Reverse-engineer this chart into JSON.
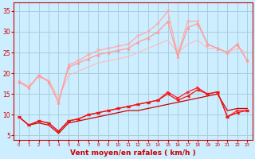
{
  "xlabel": "Vent moyen/en rafales ( km/h )",
  "background_color": "#cceeff",
  "grid_color": "#aaccdd",
  "xlim": [
    -0.5,
    23.5
  ],
  "ylim": [
    4,
    37
  ],
  "yticks": [
    5,
    10,
    15,
    20,
    25,
    30,
    35
  ],
  "xticks": [
    0,
    1,
    2,
    3,
    4,
    5,
    6,
    7,
    8,
    9,
    10,
    11,
    12,
    13,
    14,
    15,
    16,
    17,
    18,
    19,
    20,
    21,
    22,
    23
  ],
  "series": [
    {
      "name": "smooth_upper_light",
      "color": "#ffbbbb",
      "linewidth": 0.8,
      "marker": null,
      "markersize": 0,
      "y": [
        18,
        17,
        19,
        18.5,
        14,
        19.5,
        20.5,
        21.5,
        22.5,
        23,
        23.5,
        24,
        25,
        26,
        27,
        28,
        25,
        27,
        28,
        26,
        26,
        25,
        26,
        25
      ]
    },
    {
      "name": "jagged_upper_light",
      "color": "#ffaaaa",
      "linewidth": 0.9,
      "marker": "v",
      "markersize": 2.5,
      "y": [
        18,
        16.5,
        19.5,
        18,
        13,
        22,
        23,
        24.5,
        25.5,
        26,
        26.5,
        27,
        29,
        30,
        32,
        35,
        24.5,
        32.5,
        32.5,
        27,
        26,
        25,
        27,
        23
      ]
    },
    {
      "name": "jagged_upper_light2",
      "color": "#ff9999",
      "linewidth": 0.9,
      "marker": "^",
      "markersize": 2.5,
      "y": [
        18,
        16.5,
        19.5,
        18,
        13,
        21.5,
        22.5,
        23.5,
        24.5,
        25,
        25.5,
        26,
        27.5,
        28.5,
        30,
        32.5,
        24,
        31,
        32,
        27,
        26,
        25,
        27,
        23
      ]
    },
    {
      "name": "smooth_lower_dark",
      "color": "#cc0000",
      "linewidth": 0.9,
      "marker": null,
      "markersize": 0,
      "y": [
        9.5,
        7.5,
        8.0,
        7.5,
        5.5,
        8.0,
        8.5,
        9.0,
        9.5,
        10.0,
        10.5,
        11.0,
        11.0,
        11.5,
        12.0,
        12.5,
        13.0,
        13.5,
        14.0,
        14.5,
        15.0,
        11.0,
        11.5,
        11.5
      ]
    },
    {
      "name": "jagged_lower_red1",
      "color": "#ff2222",
      "linewidth": 0.9,
      "marker": ">",
      "markersize": 2.5,
      "y": [
        9.5,
        7.5,
        8.5,
        8.0,
        6.0,
        8.5,
        9.0,
        10.0,
        10.5,
        11.0,
        11.5,
        12.0,
        12.5,
        13.0,
        13.5,
        15.5,
        14.0,
        15.5,
        16.5,
        15.0,
        15.5,
        9.5,
        11.0,
        11.0
      ]
    },
    {
      "name": "jagged_lower_red2",
      "color": "#ee1111",
      "linewidth": 0.9,
      "marker": "<",
      "markersize": 2.5,
      "y": [
        9.5,
        7.5,
        8.5,
        8.0,
        6.0,
        8.5,
        9.0,
        10.0,
        10.5,
        11.0,
        11.5,
        12.0,
        12.5,
        13.0,
        13.5,
        15.0,
        13.5,
        14.5,
        16.0,
        15.0,
        15.5,
        9.5,
        10.5,
        11.0
      ]
    }
  ]
}
